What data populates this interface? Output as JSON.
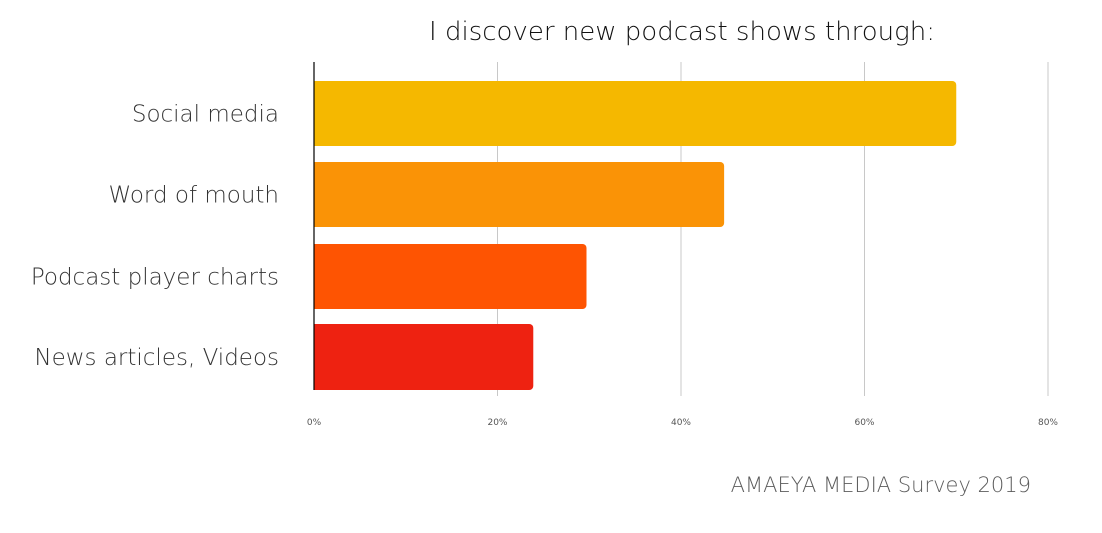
{
  "chart_data": {
    "type": "bar",
    "orientation": "horizontal",
    "title": "I discover new podcast shows through:",
    "categories": [
      "Social media",
      "Word of mouth",
      "Podcast player charts",
      "News articles, Videos"
    ],
    "values": [
      0.7,
      0.447,
      0.297,
      0.239
    ],
    "colors": [
      "#F5B800",
      "#FA9306",
      "#FE5402",
      "#EE2211"
    ],
    "xlim": [
      0,
      0.8
    ],
    "xticks": [
      0,
      0.2,
      0.4,
      0.6,
      0.8
    ],
    "xtick_labels": [
      "0%",
      "20%",
      "40%",
      "60%",
      "80%"
    ],
    "xlabel": "",
    "ylabel": "",
    "grid": "vertical",
    "legend": "none"
  },
  "source": "AMAEYA MEDIA Survey 2019"
}
